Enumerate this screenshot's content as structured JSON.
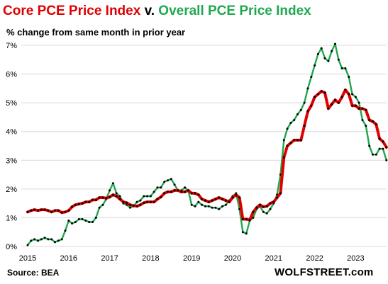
{
  "title": {
    "part1": "Core PCE Price Index",
    "part1_color": "#e00000",
    "joiner": " v. ",
    "part2": "Overall PCE Price Index",
    "part2_color": "#1fa84f"
  },
  "subtitle": "% change from same month in prior year",
  "source": "Source: BEA",
  "brand": "WOLFSTREET.com",
  "chart_data": {
    "type": "line",
    "x_start": "2015-01",
    "frequency": "monthly",
    "x_tick_labels": [
      "2015",
      "2016",
      "2017",
      "2018",
      "2019",
      "2020",
      "2021",
      "2022",
      "2023"
    ],
    "y_tick_labels": [
      "0%",
      "1%",
      "2%",
      "3%",
      "4%",
      "5%",
      "6%",
      "7%"
    ],
    "ylim": [
      0,
      7
    ],
    "grid": true,
    "series": [
      {
        "name": "Core PCE Price Index",
        "color": "#e00000",
        "marker_color": "#000000",
        "values": [
          1.2,
          1.25,
          1.28,
          1.25,
          1.28,
          1.28,
          1.25,
          1.2,
          1.25,
          1.25,
          1.18,
          1.2,
          1.25,
          1.38,
          1.45,
          1.48,
          1.5,
          1.55,
          1.55,
          1.62,
          1.62,
          1.7,
          1.7,
          1.68,
          1.72,
          1.8,
          1.75,
          1.65,
          1.55,
          1.52,
          1.45,
          1.42,
          1.4,
          1.45,
          1.52,
          1.55,
          1.55,
          1.55,
          1.65,
          1.72,
          1.85,
          1.9,
          1.9,
          1.95,
          1.95,
          1.9,
          1.9,
          1.95,
          1.85,
          1.85,
          1.8,
          1.65,
          1.6,
          1.55,
          1.6,
          1.65,
          1.7,
          1.65,
          1.6,
          1.55,
          1.7,
          1.8,
          1.7,
          0.95,
          0.95,
          0.92,
          1.2,
          1.35,
          1.45,
          1.38,
          1.4,
          1.5,
          1.55,
          1.7,
          1.85,
          3.1,
          3.5,
          3.6,
          3.7,
          3.7,
          3.7,
          4.2,
          4.7,
          4.9,
          5.2,
          5.3,
          5.4,
          5.35,
          4.8,
          4.95,
          5.1,
          5.0,
          5.2,
          5.45,
          5.3,
          4.9,
          4.9,
          4.8,
          4.8,
          4.75,
          4.4,
          4.35,
          4.25,
          3.75,
          3.65,
          3.45
        ]
      },
      {
        "name": "Overall PCE Price Index",
        "color": "#1fa84f",
        "marker_color": "#000000",
        "values": [
          0.05,
          0.2,
          0.25,
          0.2,
          0.25,
          0.3,
          0.25,
          0.25,
          0.15,
          0.2,
          0.25,
          0.55,
          0.9,
          0.8,
          0.85,
          0.95,
          0.95,
          0.9,
          0.85,
          0.85,
          1.0,
          1.35,
          1.45,
          1.65,
          1.95,
          2.2,
          1.85,
          1.75,
          1.5,
          1.45,
          1.35,
          1.4,
          1.55,
          1.6,
          1.75,
          1.75,
          1.75,
          1.9,
          2.05,
          2.05,
          2.25,
          2.3,
          2.35,
          2.15,
          1.95,
          1.95,
          2.05,
          1.95,
          1.45,
          1.4,
          1.55,
          1.45,
          1.4,
          1.4,
          1.35,
          1.35,
          1.3,
          1.4,
          1.45,
          1.6,
          1.75,
          1.85,
          1.3,
          0.5,
          0.45,
          0.9,
          1.0,
          1.3,
          1.4,
          1.2,
          1.15,
          1.3,
          1.5,
          1.8,
          2.5,
          3.7,
          4.1,
          4.3,
          4.4,
          4.6,
          4.75,
          5.0,
          5.5,
          5.9,
          6.3,
          6.7,
          6.9,
          6.55,
          6.45,
          6.8,
          7.05,
          6.5,
          6.2,
          6.2,
          5.9,
          5.3,
          5.2,
          5.0,
          4.4,
          4.2,
          3.5,
          3.2,
          3.2,
          3.4,
          3.4,
          3.0
        ]
      }
    ]
  }
}
